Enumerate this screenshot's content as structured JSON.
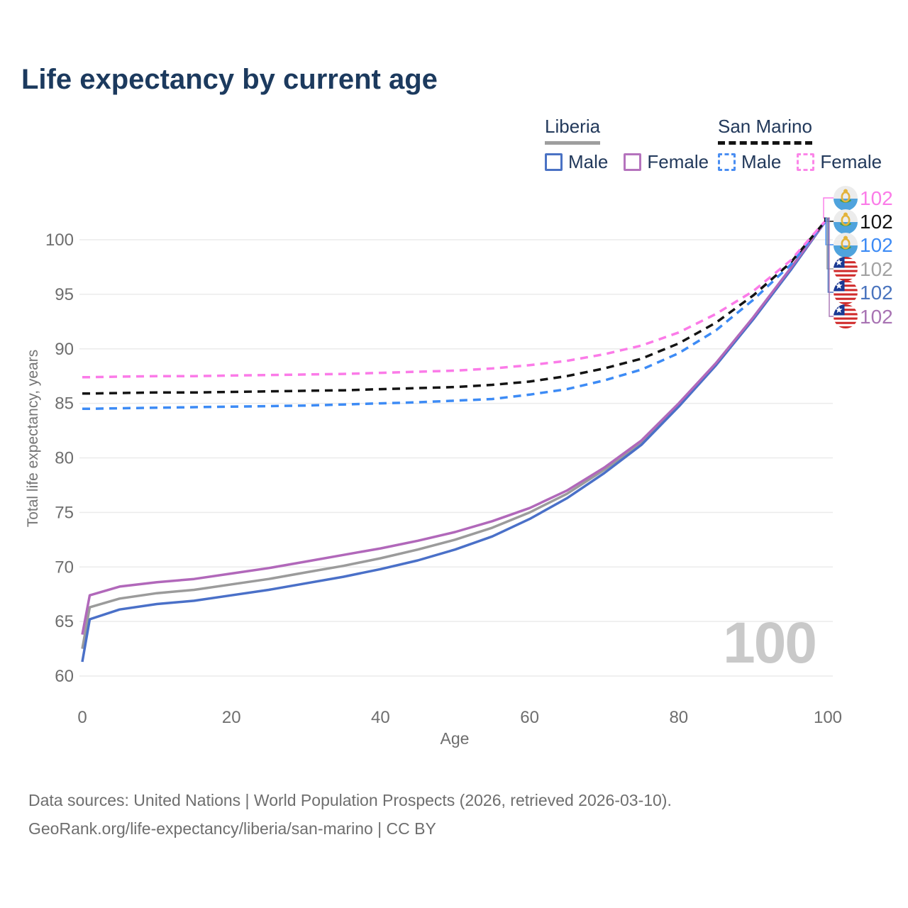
{
  "title": "Life expectancy by current age",
  "watermark": "100",
  "legend": {
    "groups": [
      {
        "label": "Liberia",
        "line_style": "solid",
        "underline_color": "#9e9e9e",
        "items": [
          {
            "label": "Male",
            "color": "#4a72c4",
            "dashed": false
          },
          {
            "label": "Female",
            "color": "#b573bd",
            "dashed": false
          }
        ]
      },
      {
        "label": "San Marino",
        "line_style": "dashed",
        "underline_color": "#141414",
        "items": [
          {
            "label": "Male",
            "color": "#4a8ef2",
            "dashed": true
          },
          {
            "label": "Female",
            "color": "#fb86e8",
            "dashed": true
          }
        ]
      }
    ]
  },
  "chart_data": {
    "type": "line",
    "title": "Life expectancy by current age",
    "xlabel": "Age",
    "ylabel": "Total life expectancy, years",
    "xlim": [
      0,
      100
    ],
    "ylim": [
      58.5,
      103
    ],
    "xticks": [
      0,
      20,
      40,
      60,
      80,
      100
    ],
    "yticks": [
      60,
      65,
      70,
      75,
      80,
      85,
      90,
      95,
      100
    ],
    "grid": "horizontal",
    "legend_position": "top-right",
    "x": [
      0,
      1,
      5,
      10,
      15,
      20,
      25,
      30,
      35,
      40,
      45,
      50,
      55,
      60,
      65,
      70,
      75,
      80,
      85,
      90,
      95,
      100
    ],
    "series": [
      {
        "id": "liberia-both",
        "name": "Liberia Both sexes",
        "color": "#9b9b9b",
        "dashed": false,
        "values": [
          62.5,
          66.3,
          67.1,
          67.6,
          67.9,
          68.4,
          68.9,
          69.5,
          70.1,
          70.8,
          71.6,
          72.5,
          73.6,
          75.0,
          76.7,
          78.9,
          81.4,
          84.8,
          88.6,
          92.8,
          97.3,
          102.0
        ]
      },
      {
        "id": "liberia-male",
        "name": "Liberia Male",
        "color": "#4a70c8",
        "dashed": false,
        "values": [
          61.3,
          65.2,
          66.1,
          66.6,
          66.9,
          67.4,
          67.9,
          68.5,
          69.1,
          69.8,
          70.6,
          71.6,
          72.8,
          74.4,
          76.3,
          78.6,
          81.2,
          84.7,
          88.5,
          92.7,
          97.2,
          102.0
        ]
      },
      {
        "id": "liberia-female",
        "name": "Liberia Female",
        "color": "#b168ba",
        "dashed": false,
        "values": [
          63.8,
          67.4,
          68.2,
          68.6,
          68.9,
          69.4,
          69.9,
          70.5,
          71.1,
          71.7,
          72.4,
          73.2,
          74.2,
          75.4,
          77.0,
          79.1,
          81.6,
          85.0,
          88.7,
          92.9,
          97.4,
          102.0
        ]
      },
      {
        "id": "san-marino-male",
        "name": "San Marino Male",
        "color": "#3d8bf5",
        "dashed": true,
        "values": [
          84.5,
          84.5,
          84.55,
          84.6,
          84.65,
          84.7,
          84.75,
          84.8,
          84.9,
          85.0,
          85.1,
          85.25,
          85.4,
          85.8,
          86.3,
          87.1,
          88.1,
          89.6,
          91.7,
          94.5,
          97.7,
          102.0
        ]
      },
      {
        "id": "san-marino-both",
        "name": "San Marino Both sexes",
        "color": "#141414",
        "dashed": true,
        "values": [
          85.9,
          85.9,
          85.95,
          86.0,
          86.0,
          86.05,
          86.1,
          86.15,
          86.2,
          86.3,
          86.4,
          86.5,
          86.7,
          87.0,
          87.5,
          88.2,
          89.1,
          90.5,
          92.4,
          94.9,
          97.9,
          102.0
        ]
      },
      {
        "id": "san-marino-female",
        "name": "San Marino Female",
        "color": "#fb7be8",
        "dashed": true,
        "values": [
          87.4,
          87.4,
          87.45,
          87.5,
          87.5,
          87.55,
          87.6,
          87.65,
          87.7,
          87.8,
          87.9,
          88.0,
          88.2,
          88.5,
          88.9,
          89.5,
          90.3,
          91.5,
          93.2,
          95.3,
          98.1,
          102.0
        ]
      }
    ],
    "end_labels": [
      {
        "value": "102",
        "color": "#fb7be8",
        "flag": "san-marino",
        "series": "San Marino Female"
      },
      {
        "value": "102",
        "color": "#141414",
        "flag": "san-marino",
        "series": "San Marino Both sexes"
      },
      {
        "value": "102",
        "color": "#3d8bf5",
        "flag": "san-marino",
        "series": "San Marino Male"
      },
      {
        "value": "102",
        "color": "#a3a3a3",
        "flag": "liberia",
        "series": "Liberia Both sexes"
      },
      {
        "value": "102",
        "color": "#4a74be",
        "flag": "liberia",
        "series": "Liberia Male"
      },
      {
        "value": "102",
        "color": "#a873b3",
        "flag": "liberia",
        "series": "Liberia Female"
      }
    ]
  },
  "footer": {
    "line1": "Data sources: United Nations | World Population Prospects (2026, retrieved 2026-03-10).",
    "line2": "GeoRank.org/life-expectancy/liberia/san-marino | CC BY"
  }
}
